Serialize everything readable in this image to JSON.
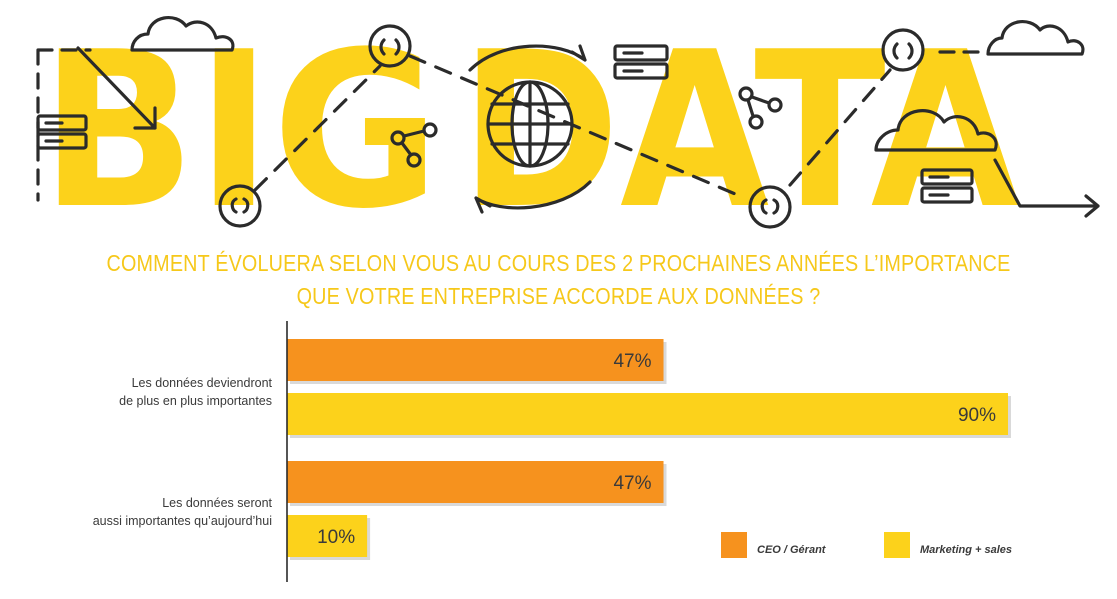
{
  "banner": {
    "word1": "BIG",
    "word2": "DATA"
  },
  "title": {
    "line1": "COMMENT ÉVOLUERA SELON VOUS AU COURS DES 2 PROCHAINES ANNÉES L’IMPORTANCE",
    "line2": "QUE VOTRE ENTREPRISE ACCORDE AUX DONNÉES ?"
  },
  "colors": {
    "yellow": "#fcd21b",
    "orange": "#f6921e",
    "title": "#f6c81a",
    "line": "#2b2b2b"
  },
  "chart_data": {
    "type": "bar",
    "orientation": "horizontal",
    "categories": [
      [
        "Les données deviendront",
        "de plus en plus importantes"
      ],
      [
        "Les données seront",
        "aussi importantes qu’aujourd’hui"
      ]
    ],
    "series": [
      {
        "name": "CEO / Gérant",
        "color": "#f6921e",
        "values": [
          47,
          47
        ],
        "labels": [
          "47%",
          "47%"
        ]
      },
      {
        "name": "Marketing + sales",
        "color": "#fcd21b",
        "values": [
          90,
          10
        ],
        "labels": [
          "90%",
          "10%"
        ]
      }
    ],
    "xlim": [
      0,
      100
    ],
    "unit": "%",
    "legend": "bottom-right",
    "grid": false
  }
}
